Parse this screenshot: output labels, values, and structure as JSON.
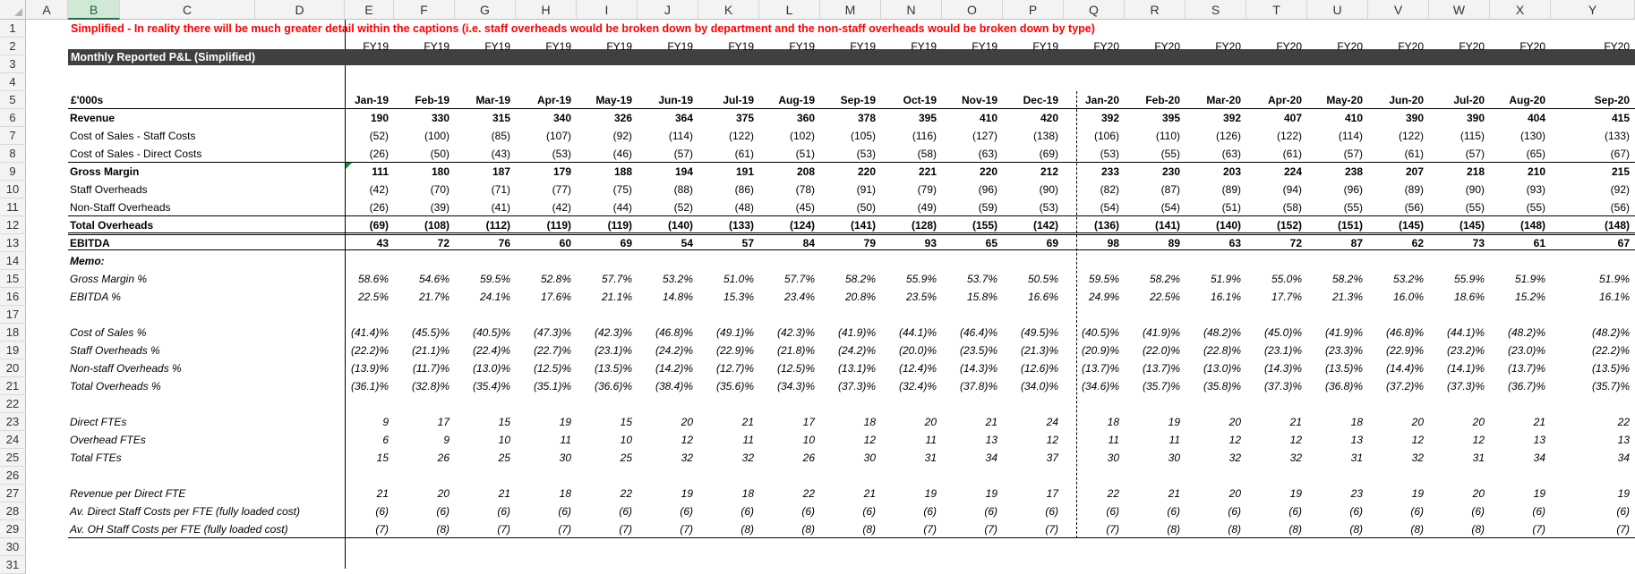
{
  "sheet": {
    "columns": [
      "A",
      "B",
      "C",
      "D",
      "E",
      "F",
      "G",
      "H",
      "I",
      "J",
      "K",
      "L",
      "M",
      "N",
      "O",
      "P",
      "Q",
      "R",
      "S",
      "T",
      "U",
      "V",
      "W",
      "X",
      "Y"
    ],
    "selected_column": "B",
    "row_numbers": [
      "1",
      "2",
      "3",
      "4",
      "5",
      "6",
      "7",
      "8",
      "9",
      "10",
      "11",
      "12",
      "13",
      "14",
      "15",
      "16",
      "17",
      "18",
      "19",
      "20",
      "21",
      "22",
      "23",
      "24",
      "25",
      "26",
      "27",
      "28",
      "29",
      "30",
      "31"
    ],
    "note": "Simplified - In reality there will be much greater detail within the captions (i.e. staff overheads would be broken down by department and the non-staff overheads would be broken down by type)",
    "band_title": "Monthly Reported P&L (Simplified)",
    "units_label": "£'000s",
    "fiscal_years": [
      "FY19",
      "FY19",
      "FY19",
      "FY19",
      "FY19",
      "FY19",
      "FY19",
      "FY19",
      "FY19",
      "FY19",
      "FY19",
      "FY19",
      "FY20",
      "FY20",
      "FY20",
      "FY20",
      "FY20",
      "FY20",
      "FY20",
      "FY20",
      "FY20"
    ],
    "months": [
      "Jan-19",
      "Feb-19",
      "Mar-19",
      "Apr-19",
      "May-19",
      "Jun-19",
      "Jul-19",
      "Aug-19",
      "Sep-19",
      "Oct-19",
      "Nov-19",
      "Dec-19",
      "Jan-20",
      "Feb-20",
      "Mar-20",
      "Apr-20",
      "May-20",
      "Jun-20",
      "Jul-20",
      "Aug-20",
      "Sep-20"
    ],
    "rows": [
      {
        "row": 6,
        "label": "Revenue",
        "style": "bold",
        "values": [
          "190",
          "330",
          "315",
          "340",
          "326",
          "364",
          "375",
          "360",
          "378",
          "395",
          "410",
          "420",
          "392",
          "395",
          "392",
          "407",
          "410",
          "390",
          "390",
          "404",
          "415"
        ]
      },
      {
        "row": 7,
        "label": "Cost of Sales - Staff Costs",
        "style": "",
        "values": [
          "(52)",
          "(100)",
          "(85)",
          "(107)",
          "(92)",
          "(114)",
          "(122)",
          "(102)",
          "(105)",
          "(116)",
          "(127)",
          "(138)",
          "(106)",
          "(110)",
          "(126)",
          "(122)",
          "(114)",
          "(122)",
          "(115)",
          "(130)",
          "(133)"
        ]
      },
      {
        "row": 8,
        "label": "Cost of Sales - Direct Costs",
        "style": "",
        "values": [
          "(26)",
          "(50)",
          "(43)",
          "(53)",
          "(46)",
          "(57)",
          "(61)",
          "(51)",
          "(53)",
          "(58)",
          "(63)",
          "(69)",
          "(53)",
          "(55)",
          "(63)",
          "(61)",
          "(57)",
          "(61)",
          "(57)",
          "(65)",
          "(67)"
        ]
      },
      {
        "row": 9,
        "label": "Gross Margin",
        "style": "bold",
        "values": [
          "111",
          "180",
          "187",
          "179",
          "188",
          "194",
          "191",
          "208",
          "220",
          "221",
          "220",
          "212",
          "233",
          "230",
          "203",
          "224",
          "238",
          "207",
          "218",
          "210",
          "215"
        ]
      },
      {
        "row": 10,
        "label": "Staff Overheads",
        "style": "",
        "values": [
          "(42)",
          "(70)",
          "(71)",
          "(77)",
          "(75)",
          "(88)",
          "(86)",
          "(78)",
          "(91)",
          "(79)",
          "(96)",
          "(90)",
          "(82)",
          "(87)",
          "(89)",
          "(94)",
          "(96)",
          "(89)",
          "(90)",
          "(93)",
          "(92)"
        ]
      },
      {
        "row": 11,
        "label": "Non-Staff Overheads",
        "style": "",
        "values": [
          "(26)",
          "(39)",
          "(41)",
          "(42)",
          "(44)",
          "(52)",
          "(48)",
          "(45)",
          "(50)",
          "(49)",
          "(59)",
          "(53)",
          "(54)",
          "(54)",
          "(51)",
          "(58)",
          "(55)",
          "(56)",
          "(55)",
          "(55)",
          "(56)"
        ]
      },
      {
        "row": 12,
        "label": "Total Overheads",
        "style": "bold",
        "values": [
          "(69)",
          "(108)",
          "(112)",
          "(119)",
          "(119)",
          "(140)",
          "(133)",
          "(124)",
          "(141)",
          "(128)",
          "(155)",
          "(142)",
          "(136)",
          "(141)",
          "(140)",
          "(152)",
          "(151)",
          "(145)",
          "(145)",
          "(148)",
          "(148)"
        ]
      },
      {
        "row": 13,
        "label": "EBITDA",
        "style": "bold",
        "values": [
          "43",
          "72",
          "76",
          "60",
          "69",
          "54",
          "57",
          "84",
          "79",
          "93",
          "65",
          "69",
          "98",
          "89",
          "63",
          "72",
          "87",
          "62",
          "73",
          "61",
          "67"
        ]
      },
      {
        "row": 14,
        "label": "Memo:",
        "style": "bold ital",
        "values": []
      },
      {
        "row": 15,
        "label": "Gross Margin %",
        "style": "ital",
        "values": [
          "58.6%",
          "54.6%",
          "59.5%",
          "52.8%",
          "57.7%",
          "53.2%",
          "51.0%",
          "57.7%",
          "58.2%",
          "55.9%",
          "53.7%",
          "50.5%",
          "59.5%",
          "58.2%",
          "51.9%",
          "55.0%",
          "58.2%",
          "53.2%",
          "55.9%",
          "51.9%",
          "51.9%"
        ]
      },
      {
        "row": 16,
        "label": "EBITDA %",
        "style": "ital",
        "values": [
          "22.5%",
          "21.7%",
          "24.1%",
          "17.6%",
          "21.1%",
          "14.8%",
          "15.3%",
          "23.4%",
          "20.8%",
          "23.5%",
          "15.8%",
          "16.6%",
          "24.9%",
          "22.5%",
          "16.1%",
          "17.7%",
          "21.3%",
          "16.0%",
          "18.6%",
          "15.2%",
          "16.1%"
        ]
      },
      {
        "row": 18,
        "label": "Cost of Sales %",
        "style": "ital",
        "values": [
          "(41.4)%",
          "(45.5)%",
          "(40.5)%",
          "(47.3)%",
          "(42.3)%",
          "(46.8)%",
          "(49.1)%",
          "(42.3)%",
          "(41.9)%",
          "(44.1)%",
          "(46.4)%",
          "(49.5)%",
          "(40.5)%",
          "(41.9)%",
          "(48.2)%",
          "(45.0)%",
          "(41.9)%",
          "(46.8)%",
          "(44.1)%",
          "(48.2)%",
          "(48.2)%"
        ]
      },
      {
        "row": 19,
        "label": "Staff Overheads %",
        "style": "ital",
        "values": [
          "(22.2)%",
          "(21.1)%",
          "(22.4)%",
          "(22.7)%",
          "(23.1)%",
          "(24.2)%",
          "(22.9)%",
          "(21.8)%",
          "(24.2)%",
          "(20.0)%",
          "(23.5)%",
          "(21.3)%",
          "(20.9)%",
          "(22.0)%",
          "(22.8)%",
          "(23.1)%",
          "(23.3)%",
          "(22.9)%",
          "(23.2)%",
          "(23.0)%",
          "(22.2)%"
        ]
      },
      {
        "row": 20,
        "label": "Non-staff Overheads %",
        "style": "ital",
        "values": [
          "(13.9)%",
          "(11.7)%",
          "(13.0)%",
          "(12.5)%",
          "(13.5)%",
          "(14.2)%",
          "(12.7)%",
          "(12.5)%",
          "(13.1)%",
          "(12.4)%",
          "(14.3)%",
          "(12.6)%",
          "(13.7)%",
          "(13.7)%",
          "(13.0)%",
          "(14.3)%",
          "(13.5)%",
          "(14.4)%",
          "(14.1)%",
          "(13.7)%",
          "(13.5)%"
        ]
      },
      {
        "row": 21,
        "label": "Total Overheads %",
        "style": "ital",
        "values": [
          "(36.1)%",
          "(32.8)%",
          "(35.4)%",
          "(35.1)%",
          "(36.6)%",
          "(38.4)%",
          "(35.6)%",
          "(34.3)%",
          "(37.3)%",
          "(32.4)%",
          "(37.8)%",
          "(34.0)%",
          "(34.6)%",
          "(35.7)%",
          "(35.8)%",
          "(37.3)%",
          "(36.8)%",
          "(37.2)%",
          "(37.3)%",
          "(36.7)%",
          "(35.7)%"
        ]
      },
      {
        "row": 23,
        "label": "Direct FTEs",
        "style": "ital",
        "values": [
          "9",
          "17",
          "15",
          "19",
          "15",
          "20",
          "21",
          "17",
          "18",
          "20",
          "21",
          "24",
          "18",
          "19",
          "20",
          "21",
          "18",
          "20",
          "20",
          "21",
          "22"
        ]
      },
      {
        "row": 24,
        "label": "Overhead FTEs",
        "style": "ital",
        "values": [
          "6",
          "9",
          "10",
          "11",
          "10",
          "12",
          "11",
          "10",
          "12",
          "11",
          "13",
          "12",
          "11",
          "11",
          "12",
          "12",
          "13",
          "12",
          "12",
          "13",
          "13"
        ]
      },
      {
        "row": 25,
        "label": "Total FTEs",
        "style": "ital",
        "values": [
          "15",
          "26",
          "25",
          "30",
          "25",
          "32",
          "32",
          "26",
          "30",
          "31",
          "34",
          "37",
          "30",
          "30",
          "32",
          "32",
          "31",
          "32",
          "31",
          "34",
          "34"
        ]
      },
      {
        "row": 27,
        "label": "Revenue per Direct FTE",
        "style": "ital",
        "values": [
          "21",
          "20",
          "21",
          "18",
          "22",
          "19",
          "18",
          "22",
          "21",
          "19",
          "19",
          "17",
          "22",
          "21",
          "20",
          "19",
          "23",
          "19",
          "20",
          "19",
          "19"
        ]
      },
      {
        "row": 28,
        "label": "Av. Direct Staff Costs per FTE (fully loaded cost)",
        "style": "ital",
        "values": [
          "(6)",
          "(6)",
          "(6)",
          "(6)",
          "(6)",
          "(6)",
          "(6)",
          "(6)",
          "(6)",
          "(6)",
          "(6)",
          "(6)",
          "(6)",
          "(6)",
          "(6)",
          "(6)",
          "(6)",
          "(6)",
          "(6)",
          "(6)",
          "(6)"
        ]
      },
      {
        "row": 29,
        "label": "Av. OH Staff Costs per FTE (fully loaded cost)",
        "style": "ital",
        "values": [
          "(7)",
          "(8)",
          "(7)",
          "(7)",
          "(7)",
          "(7)",
          "(8)",
          "(8)",
          "(8)",
          "(7)",
          "(7)",
          "(7)",
          "(7)",
          "(8)",
          "(8)",
          "(8)",
          "(8)",
          "(8)",
          "(8)",
          "(7)",
          "(7)"
        ]
      }
    ]
  }
}
